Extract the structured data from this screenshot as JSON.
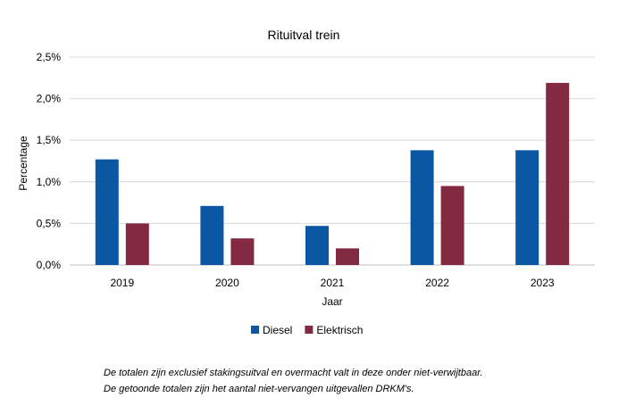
{
  "chart_data": {
    "type": "bar",
    "title": "Rituitval trein",
    "xlabel": "Jaar",
    "ylabel": "Percentage",
    "categories": [
      "2019",
      "2020",
      "2021",
      "2022",
      "2023"
    ],
    "series": [
      {
        "name": "Diesel",
        "color": "#0b57a4",
        "values": [
          1.27,
          0.71,
          0.47,
          1.38,
          1.38
        ]
      },
      {
        "name": "Elektrisch",
        "color": "#832a42",
        "values": [
          0.5,
          0.32,
          0.2,
          0.95,
          2.19
        ]
      }
    ],
    "ylim": [
      0,
      2.5
    ],
    "yticks": [
      0,
      0.5,
      1.0,
      1.5,
      2.0,
      2.5
    ],
    "ytick_labels": [
      "0,0%",
      "0,5%",
      "1,0%",
      "1,5%",
      "2,0%",
      "2,5%"
    ],
    "grid": true,
    "legend": "bottom"
  },
  "footnotes": [
    "De totalen zijn exclusief stakingsuitval en overmacht valt in deze onder niet-verwijtbaar.",
    "De getoonde totalen zijn het aantal niet-vervangen uitgevallen DRKM's."
  ]
}
